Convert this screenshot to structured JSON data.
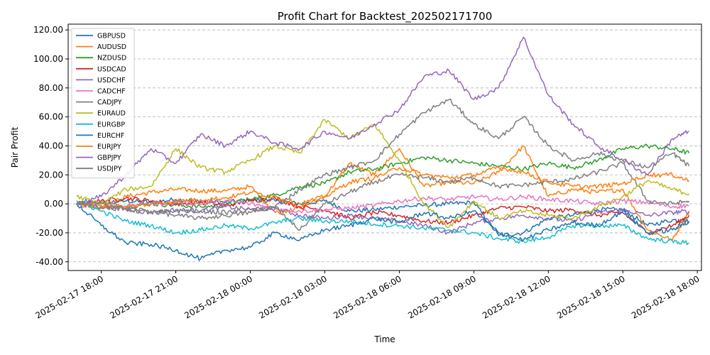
{
  "chart_data": {
    "type": "line",
    "title": "Profit Chart for Backtest_202502171700",
    "xlabel": "Time",
    "ylabel": "Pair Profit",
    "x_range": [
      "2025-02-17 16:40",
      "2025-02-18 18:10"
    ],
    "ylim": [
      -46,
      124
    ],
    "y_ticks": [
      -40,
      -20,
      0,
      20,
      40,
      60,
      80,
      100,
      120
    ],
    "y_tick_labels": [
      "-40.00",
      "-20.00",
      "0.00",
      "20.00",
      "40.00",
      "60.00",
      "80.00",
      "100.00",
      "120.00"
    ],
    "x_ticks": [
      "2025-02-17 18:00",
      "2025-02-17 21:00",
      "2025-02-18 00:00",
      "2025-02-18 03:00",
      "2025-02-18 06:00",
      "2025-02-18 09:00",
      "2025-02-18 12:00",
      "2025-02-18 15:00",
      "2025-02-18 18:00"
    ],
    "x_tick_labels": [
      "2025-02-17 18:00",
      "2025-02-17 21:00",
      "2025-02-18 00:00",
      "2025-02-18 03:00",
      "2025-02-18 06:00",
      "2025-02-18 09:00",
      "2025-02-18 12:00",
      "2025-02-18 15:00",
      "2025-02-18 18:00"
    ],
    "grid": "y-dashed",
    "legend_position": "top-left",
    "x": [
      "2025-02-17 17:00",
      "2025-02-17 18:00",
      "2025-02-17 19:00",
      "2025-02-17 20:00",
      "2025-02-17 21:00",
      "2025-02-17 22:00",
      "2025-02-17 23:00",
      "2025-02-18 00:00",
      "2025-02-18 01:00",
      "2025-02-18 02:00",
      "2025-02-18 03:00",
      "2025-02-18 04:00",
      "2025-02-18 05:00",
      "2025-02-18 06:00",
      "2025-02-18 07:00",
      "2025-02-18 08:00",
      "2025-02-18 09:00",
      "2025-02-18 10:00",
      "2025-02-18 11:00",
      "2025-02-18 12:00",
      "2025-02-18 13:00",
      "2025-02-18 14:00",
      "2025-02-18 15:00",
      "2025-02-18 16:00",
      "2025-02-18 17:00",
      "2025-02-18 17:40"
    ],
    "series": [
      {
        "name": "GBPUSD",
        "color": "#1f77b4",
        "values": [
          0,
          1,
          2,
          1,
          3,
          2,
          1,
          3,
          2,
          0,
          2,
          -5,
          -4,
          -2,
          -1,
          0,
          1,
          -22,
          -20,
          -10,
          -8,
          -4,
          -4,
          -15,
          -11,
          -12
        ]
      },
      {
        "name": "AUDUSD",
        "color": "#ff7f0e",
        "values": [
          0,
          -3,
          5,
          8,
          10,
          9,
          9,
          12,
          -6,
          -3,
          5,
          28,
          20,
          38,
          12,
          15,
          14,
          22,
          40,
          5,
          10,
          8,
          10,
          -18,
          -25,
          -5
        ]
      },
      {
        "name": "NZDUSD",
        "color": "#2ca02c",
        "values": [
          0,
          1,
          -2,
          0,
          -1,
          -2,
          -1,
          3,
          6,
          12,
          14,
          22,
          24,
          28,
          32,
          30,
          28,
          26,
          24,
          28,
          25,
          30,
          38,
          40,
          38,
          35
        ]
      },
      {
        "name": "USDCAD",
        "color": "#d62728",
        "values": [
          0,
          2,
          4,
          2,
          0,
          1,
          -1,
          2,
          4,
          -2,
          -4,
          -10,
          -6,
          -8,
          -12,
          -13,
          -8,
          -3,
          -2,
          -5,
          -4,
          -8,
          -6,
          -20,
          -15,
          -8
        ]
      },
      {
        "name": "USDCHF",
        "color": "#9467bd",
        "values": [
          0,
          -2,
          -4,
          -6,
          -4,
          -5,
          -2,
          -4,
          -3,
          -8,
          -10,
          -8,
          -10,
          -12,
          -15,
          -20,
          -13,
          -10,
          -8,
          -10,
          -12,
          -6,
          -4,
          -8,
          -6,
          -5
        ]
      },
      {
        "name": "CADCHF",
        "color": "#e377c2",
        "values": [
          0,
          1,
          -2,
          0,
          1,
          0,
          2,
          0,
          -3,
          -5,
          -4,
          -3,
          -1,
          2,
          4,
          3,
          5,
          3,
          5,
          3,
          2,
          0,
          2,
          1,
          -2,
          -1
        ]
      },
      {
        "name": "CADJPY",
        "color": "#7f7f7f",
        "values": [
          0,
          -2,
          -4,
          -6,
          -5,
          -5,
          -6,
          -4,
          -3,
          -18,
          0,
          8,
          15,
          20,
          18,
          15,
          18,
          12,
          13,
          15,
          17,
          22,
          28,
          2,
          0,
          2
        ]
      },
      {
        "name": "EURAUD",
        "color": "#bcbd22",
        "values": [
          5,
          0,
          10,
          12,
          38,
          25,
          22,
          30,
          40,
          35,
          58,
          45,
          55,
          30,
          0,
          -16,
          2,
          -10,
          -5,
          -8,
          -10,
          -2,
          5,
          16,
          10,
          7
        ]
      },
      {
        "name": "EURGBP",
        "color": "#17becf",
        "values": [
          2,
          -5,
          -12,
          -15,
          -20,
          -18,
          -15,
          -17,
          -13,
          -10,
          -12,
          -12,
          -14,
          -15,
          -17,
          -18,
          -20,
          -24,
          -26,
          -23,
          -15,
          -15,
          -15,
          -24,
          -26,
          -27
        ]
      },
      {
        "name": "EURCHF",
        "color": "#1f77b4",
        "values": [
          0,
          -15,
          -27,
          -28,
          -32,
          -38,
          -32,
          -30,
          -20,
          -25,
          -18,
          -15,
          -10,
          -13,
          -6,
          -10,
          -5,
          -20,
          -25,
          -18,
          -13,
          -15,
          -5,
          -20,
          -18,
          -12
        ]
      },
      {
        "name": "EURJPY",
        "color": "#ff7f0e",
        "values": [
          0,
          -1,
          -2,
          0,
          2,
          3,
          4,
          8,
          5,
          0,
          5,
          15,
          18,
          25,
          20,
          18,
          20,
          25,
          22,
          15,
          12,
          12,
          14,
          20,
          20,
          16
        ]
      },
      {
        "name": "GBPJPY",
        "color": "#9467bd",
        "values": [
          0,
          5,
          20,
          38,
          28,
          48,
          40,
          50,
          42,
          38,
          50,
          45,
          55,
          65,
          88,
          92,
          72,
          80,
          115,
          75,
          55,
          40,
          30,
          20,
          45,
          50
        ]
      },
      {
        "name": "USDJPY",
        "color": "#7f7f7f",
        "values": [
          0,
          0,
          -3,
          -5,
          -8,
          -10,
          -8,
          -6,
          -2,
          10,
          20,
          25,
          30,
          48,
          63,
          72,
          55,
          45,
          60,
          40,
          30,
          35,
          30,
          25,
          35,
          26
        ]
      }
    ]
  }
}
